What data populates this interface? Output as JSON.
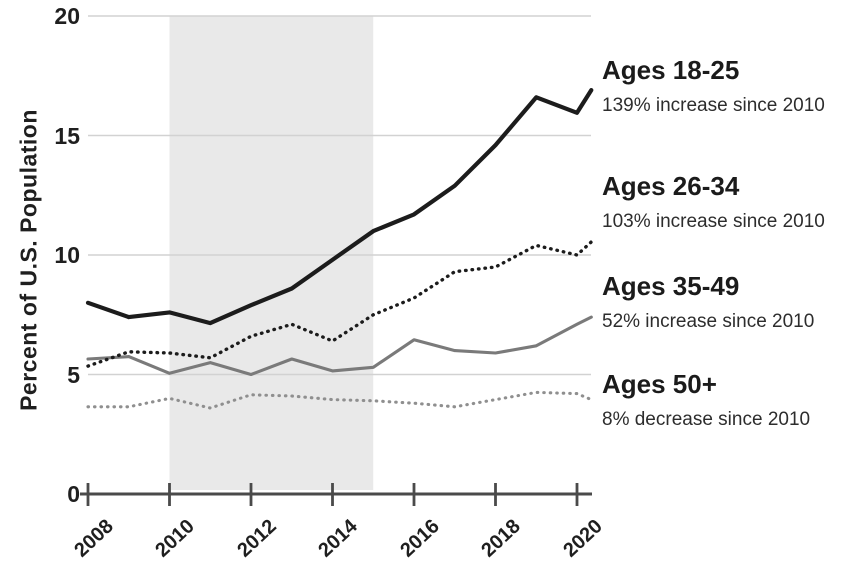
{
  "chart_data": {
    "type": "line",
    "title": "",
    "xlabel": "",
    "ylabel": "Percent of U.S. Population",
    "ylim": [
      0,
      20
    ],
    "xlim": [
      2008,
      2020.4
    ],
    "yticks": [
      20,
      15,
      10,
      5,
      0
    ],
    "xticks": [
      2008,
      2010,
      2012,
      2014,
      2016,
      2018,
      2020
    ],
    "grid": "horizontal gridlines at each y tick",
    "legend_position": "right side, outside plot",
    "shaded_region": {
      "from": 2010,
      "to": 2015,
      "color": "#e9e9e9"
    },
    "colors": {
      "grid": "#d2d2d2",
      "axis": "#4a4a4a",
      "dark_line": "#1c1c1c",
      "gray_line": "#7a7a7a",
      "gray_dots": "#8f8f8f",
      "text": "#1f1f1f"
    },
    "x_years": [
      2008,
      2009,
      2010,
      2011,
      2012,
      2013,
      2014,
      2015,
      2016,
      2017,
      2018,
      2019,
      2020,
      2020.35
    ],
    "series": [
      {
        "name": "Ages 18-25",
        "note": "139% increase since 2010",
        "style": "solid",
        "color": "#1c1c1c",
        "width": 4.2,
        "values": [
          8.0,
          7.4,
          7.6,
          7.15,
          7.9,
          8.6,
          9.8,
          11.0,
          11.7,
          12.9,
          14.6,
          16.6,
          15.95,
          16.9
        ]
      },
      {
        "name": "Ages 26-34",
        "note": "103% increase since 2010",
        "style": "dotted",
        "color": "#1c1c1c",
        "width": 3.4,
        "values": [
          5.35,
          5.95,
          5.9,
          5.7,
          6.6,
          7.1,
          6.4,
          7.5,
          8.2,
          9.3,
          9.5,
          10.4,
          10.0,
          10.55
        ]
      },
      {
        "name": "Ages 35-49",
        "note": "52% increase since 2010",
        "style": "solid",
        "color": "#7a7a7a",
        "width": 3.1,
        "values": [
          5.65,
          5.75,
          5.05,
          5.5,
          5.0,
          5.65,
          5.15,
          5.3,
          6.45,
          6.0,
          5.9,
          6.2,
          7.1,
          7.4
        ]
      },
      {
        "name": "Ages 50+",
        "note": "8% decrease since 2010",
        "style": "dotted",
        "color": "#8f8f8f",
        "width": 3.1,
        "values": [
          3.65,
          3.65,
          4.0,
          3.6,
          4.15,
          4.1,
          3.95,
          3.9,
          3.8,
          3.65,
          3.95,
          4.25,
          4.2,
          3.95
        ]
      }
    ]
  }
}
